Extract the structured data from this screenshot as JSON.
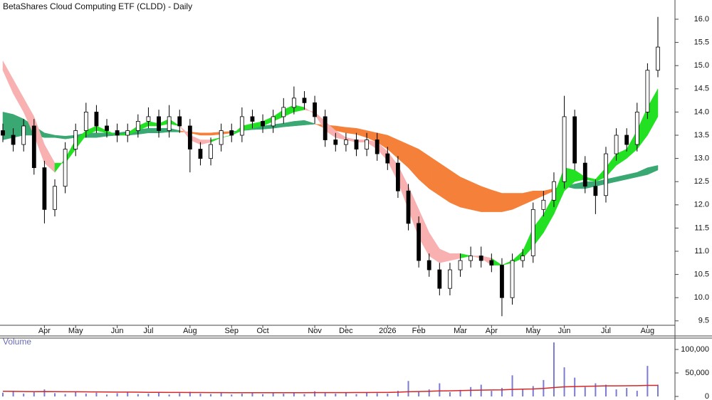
{
  "chart_data": {
    "type": "candlestick",
    "title": "BetaShares Cloud Computing ETF (CLDD) - Daily",
    "categories": [
      null,
      null,
      null,
      null,
      "Apr",
      null,
      null,
      "May",
      null,
      null,
      null,
      "Jun",
      null,
      null,
      "Jul",
      null,
      null,
      null,
      "Aug",
      null,
      null,
      null,
      "Sep",
      null,
      null,
      "Oct",
      null,
      null,
      null,
      null,
      "Nov",
      null,
      null,
      "Dec",
      null,
      null,
      null,
      "2026",
      null,
      null,
      "Feb",
      null,
      null,
      null,
      "Mar",
      null,
      null,
      "Apr",
      null,
      null,
      null,
      "May",
      null,
      null,
      "Jun",
      null,
      null,
      null,
      "Jul",
      null,
      null,
      null,
      "Aug",
      null
    ],
    "open": [
      13.6,
      13.5,
      13.3,
      13.7,
      12.8,
      11.9,
      12.4,
      13.2,
      13.6,
      14.0,
      13.7,
      13.6,
      13.5,
      13.6,
      13.8,
      13.9,
      13.6,
      13.9,
      13.7,
      13.2,
      13.0,
      13.3,
      13.6,
      13.5,
      13.9,
      13.8,
      13.7,
      13.9,
      14.1,
      14.3,
      14.2,
      13.9,
      13.4,
      13.3,
      13.4,
      13.2,
      13.4,
      13.1,
      12.9,
      12.3,
      11.6,
      10.8,
      10.6,
      10.2,
      10.6,
      10.8,
      10.9,
      10.8,
      10.7,
      10.0,
      10.8,
      10.9,
      11.9,
      12.1,
      12.5,
      13.9,
      12.9,
      12.4,
      12.2,
      13.1,
      13.5,
      13.3,
      14.0,
      14.9
    ],
    "high": [
      13.75,
      13.65,
      13.85,
      13.85,
      12.95,
      12.55,
      13.35,
      13.75,
      14.2,
      14.15,
      13.85,
      13.75,
      13.75,
      13.95,
      14.1,
      14.05,
      14.15,
      14.05,
      13.85,
      13.35,
      13.45,
      13.75,
      13.75,
      14.1,
      14.05,
      13.95,
      14.05,
      14.3,
      14.55,
      14.45,
      14.35,
      14.05,
      13.55,
      13.55,
      13.55,
      13.55,
      13.55,
      13.25,
      13.05,
      12.45,
      11.75,
      10.95,
      10.75,
      10.75,
      10.95,
      11.1,
      11.1,
      10.95,
      10.85,
      10.95,
      11.05,
      12.05,
      12.3,
      12.7,
      14.35,
      14.05,
      13.05,
      12.55,
      13.25,
      13.65,
      13.65,
      14.2,
      15.05,
      16.05
    ],
    "low": [
      13.35,
      13.15,
      13.15,
      12.65,
      11.6,
      11.75,
      12.25,
      13.05,
      13.45,
      13.55,
      13.45,
      13.35,
      13.35,
      13.45,
      13.65,
      13.45,
      13.45,
      13.55,
      12.7,
      12.85,
      12.85,
      13.15,
      13.35,
      13.35,
      13.65,
      13.55,
      13.55,
      13.75,
      13.95,
      14.05,
      13.75,
      13.25,
      13.15,
      13.15,
      13.05,
      13.05,
      12.95,
      12.75,
      12.15,
      11.45,
      10.65,
      10.45,
      10.05,
      10.05,
      10.45,
      10.65,
      10.65,
      10.55,
      9.6,
      9.85,
      10.65,
      10.75,
      11.75,
      11.95,
      12.35,
      12.75,
      12.25,
      11.8,
      12.05,
      12.95,
      13.15,
      13.15,
      13.85,
      14.75
    ],
    "close": [
      13.5,
      13.3,
      13.7,
      12.8,
      11.9,
      12.4,
      13.2,
      13.6,
      14.0,
      13.7,
      13.6,
      13.5,
      13.6,
      13.8,
      13.9,
      13.6,
      13.9,
      13.7,
      13.2,
      13.0,
      13.3,
      13.6,
      13.5,
      13.9,
      13.8,
      13.7,
      13.9,
      14.1,
      14.3,
      14.2,
      13.9,
      13.4,
      13.3,
      13.4,
      13.2,
      13.4,
      13.1,
      12.9,
      12.3,
      11.6,
      10.8,
      10.6,
      10.2,
      10.6,
      10.8,
      10.9,
      10.8,
      10.7,
      10.0,
      10.8,
      10.9,
      11.9,
      12.1,
      12.5,
      13.9,
      12.9,
      12.4,
      12.2,
      13.1,
      13.5,
      13.3,
      14.0,
      14.9,
      15.4
    ],
    "up_color": "#ffffff",
    "down_color": "#000000",
    "ylim": [
      9.405,
      16.414
    ],
    "yticks": [
      9.5,
      {
        "value": 10,
        "label": "10.0"
      },
      10.5,
      {
        "value": 11,
        "label": "11.0"
      },
      11.5,
      {
        "value": 12,
        "label": "12.0"
      },
      12.5,
      {
        "value": 13,
        "label": "13.0"
      },
      13.5,
      {
        "value": 14,
        "label": "14.0"
      },
      14.5,
      {
        "value": 15,
        "label": "15.0"
      },
      15.5,
      {
        "value": 16,
        "label": "16.0"
      }
    ],
    "ribbons": [
      {
        "fast": [
          14.0,
          13.95,
          13.85,
          13.7,
          13.55,
          13.5,
          13.48,
          13.5,
          13.55,
          13.55,
          13.55,
          13.55,
          13.58,
          13.62,
          13.65,
          13.65,
          13.65,
          13.6,
          13.55,
          13.5,
          13.5,
          13.52,
          13.55,
          13.62,
          13.67,
          13.7,
          13.73,
          13.76,
          13.8,
          13.82,
          13.75,
          13.65,
          13.6,
          13.55,
          13.52,
          13.45,
          13.35,
          13.2,
          13.0,
          12.8,
          12.55,
          12.35,
          12.2,
          12.05,
          11.95,
          11.9,
          11.85,
          11.85,
          11.85,
          11.9,
          12.0,
          12.1,
          12.2,
          12.3,
          12.4,
          12.45,
          12.5,
          12.5,
          12.55,
          12.6,
          12.65,
          12.7,
          12.8,
          12.85
        ],
        "slow": [
          13.4,
          13.45,
          13.5,
          13.5,
          13.45,
          13.45,
          13.42,
          13.45,
          13.45,
          13.45,
          13.48,
          13.5,
          13.5,
          13.52,
          13.55,
          13.55,
          13.57,
          13.57,
          13.57,
          13.55,
          13.55,
          13.57,
          13.58,
          13.6,
          13.62,
          13.63,
          13.65,
          13.68,
          13.7,
          13.72,
          13.74,
          13.72,
          13.7,
          13.67,
          13.65,
          13.6,
          13.55,
          13.5,
          13.4,
          13.3,
          13.2,
          13.05,
          12.9,
          12.75,
          12.6,
          12.5,
          12.4,
          12.32,
          12.25,
          12.25,
          12.25,
          12.3,
          12.3,
          12.35,
          12.4,
          12.35,
          12.35,
          12.4,
          12.45,
          12.5,
          12.55,
          12.6,
          12.65,
          12.75
        ],
        "up_color": "#3aa872",
        "down_color": "#f4803a"
      },
      {
        "fast": [
          14.9,
          14.4,
          14.0,
          13.5,
          12.9,
          12.7,
          13.0,
          13.4,
          13.6,
          13.7,
          13.6,
          13.5,
          13.55,
          13.7,
          13.8,
          13.75,
          13.85,
          13.7,
          13.4,
          13.3,
          13.35,
          13.45,
          13.5,
          13.7,
          13.75,
          13.8,
          13.9,
          14.05,
          14.15,
          14.1,
          13.95,
          13.6,
          13.45,
          13.4,
          13.35,
          13.35,
          13.2,
          12.95,
          12.5,
          11.9,
          11.3,
          10.9,
          10.75,
          10.8,
          10.85,
          10.9,
          10.85,
          10.7,
          10.7,
          10.8,
          11.0,
          11.5,
          11.8,
          12.2,
          12.8,
          12.75,
          12.6,
          12.55,
          12.8,
          13.1,
          13.2,
          13.6,
          14.1,
          14.5
        ],
        "slow": [
          15.1,
          14.7,
          14.3,
          13.9,
          13.3,
          12.9,
          12.9,
          13.2,
          13.5,
          13.6,
          13.55,
          13.5,
          13.5,
          13.6,
          13.7,
          13.7,
          13.75,
          13.7,
          13.5,
          13.4,
          13.4,
          13.45,
          13.5,
          13.6,
          13.65,
          13.7,
          13.8,
          13.9,
          14.0,
          14.05,
          14.0,
          13.8,
          13.6,
          13.45,
          13.4,
          13.4,
          13.35,
          13.15,
          12.85,
          12.4,
          11.9,
          11.4,
          11.05,
          10.95,
          10.95,
          10.9,
          10.9,
          10.85,
          10.7,
          10.75,
          10.85,
          11.1,
          11.4,
          11.8,
          12.3,
          12.5,
          12.55,
          12.5,
          12.6,
          12.85,
          13.0,
          13.2,
          13.5,
          13.9
        ],
        "up_color": "#22e022",
        "down_color": "#f8b0b0"
      }
    ],
    "volume": {
      "title": "Volume",
      "color": "#7b7bd1",
      "values": [
        8000,
        12000,
        6000,
        9000,
        15000,
        7000,
        5000,
        10000,
        6000,
        8000,
        4000,
        7000,
        9000,
        5000,
        6000,
        8000,
        4000,
        7000,
        10000,
        6000,
        5000,
        9000,
        4000,
        6000,
        7000,
        5000,
        8000,
        6000,
        9000,
        5000,
        11000,
        7000,
        6000,
        8000,
        5000,
        9000,
        7000,
        6000,
        12000,
        33000,
        10000,
        15000,
        28000,
        9000,
        14000,
        20000,
        25000,
        12000,
        18000,
        45000,
        15000,
        22000,
        35000,
        115000,
        62000,
        40000,
        20000,
        28000,
        25000,
        15000,
        18000,
        12000,
        65000,
        25000
      ],
      "ma": [
        11000,
        10800,
        10500,
        10200,
        10500,
        10300,
        10000,
        10000,
        9800,
        9600,
        9500,
        9300,
        9200,
        9000,
        8800,
        8700,
        8600,
        8500,
        8400,
        8300,
        8200,
        8100,
        8000,
        8000,
        8000,
        7900,
        7900,
        7900,
        8000,
        8000,
        8100,
        8100,
        8200,
        8200,
        8300,
        8400,
        8500,
        8600,
        9000,
        10000,
        10500,
        11000,
        11800,
        12000,
        12500,
        13000,
        13500,
        13800,
        14000,
        15000,
        15500,
        16000,
        17000,
        19000,
        20500,
        21000,
        21500,
        22000,
        22500,
        22500,
        22800,
        23000,
        23500,
        23500
      ],
      "ma_color": "#d62728",
      "ylim": [
        0,
        119700
      ],
      "yticks": [
        0,
        {
          "value": 50000,
          "label": "50,000"
        },
        {
          "value": 100000,
          "label": "100,000"
        }
      ]
    }
  }
}
